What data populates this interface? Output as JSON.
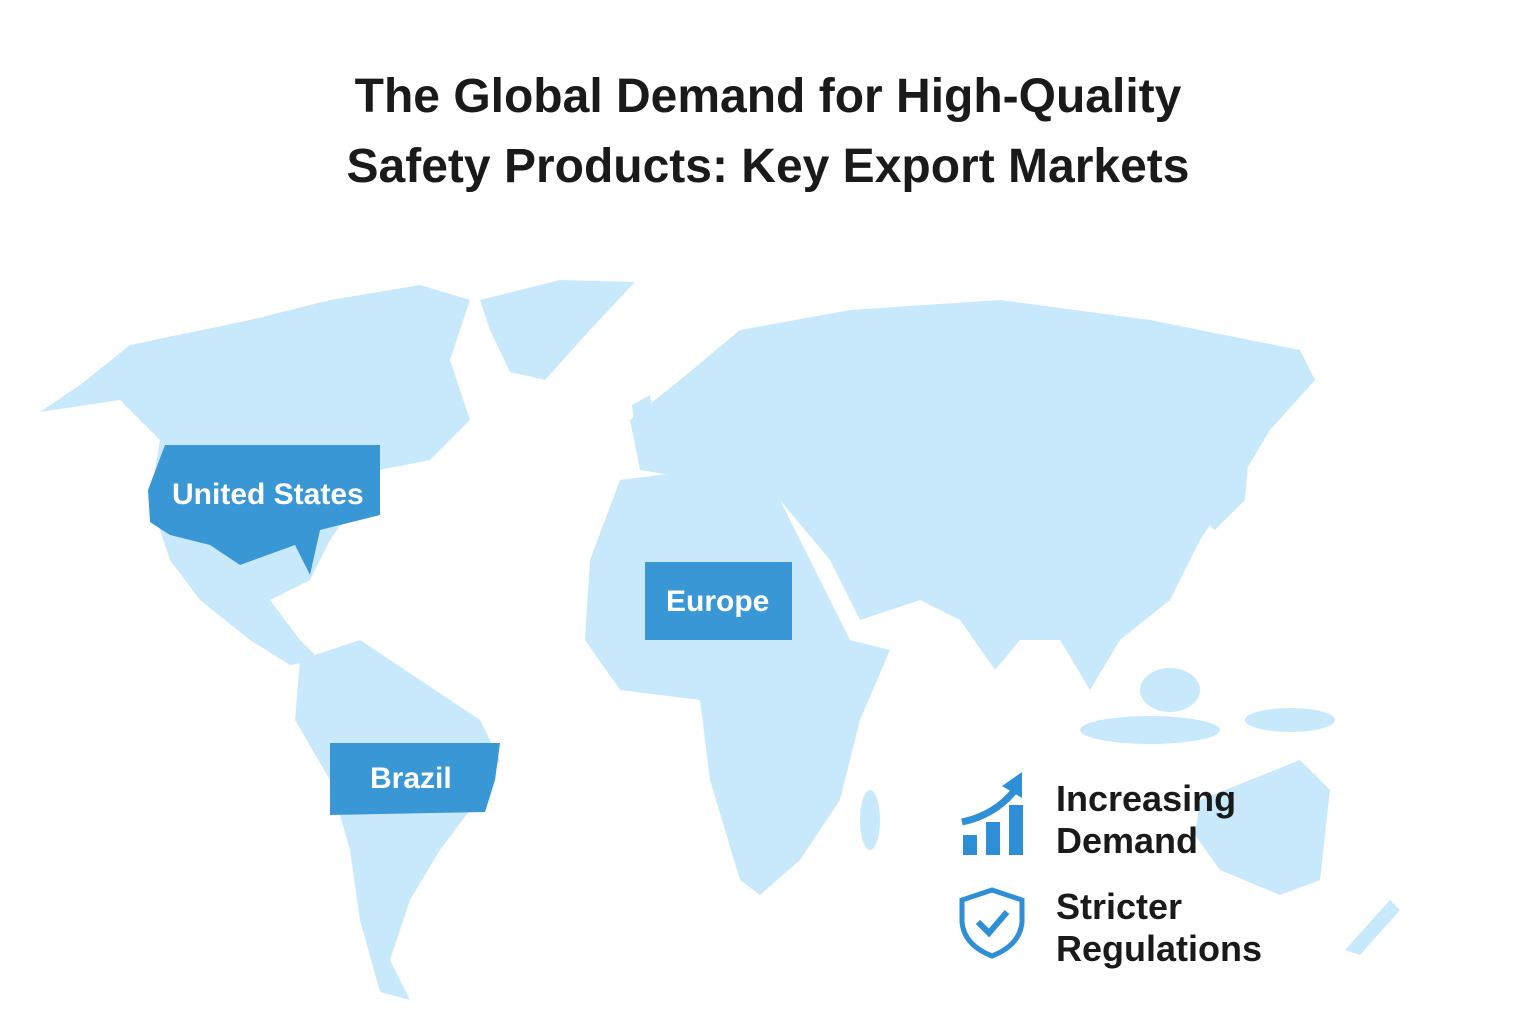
{
  "title": [
    "The Global Demand for High-Quality",
    "Safety Products: Key Export Markets"
  ],
  "markets": [
    {
      "label": "United States"
    },
    {
      "label": "Europe"
    },
    {
      "label": "Brazil"
    }
  ],
  "legend": [
    {
      "label": "Increasing Demand"
    },
    {
      "label": "Stricter Regulations"
    }
  ]
}
